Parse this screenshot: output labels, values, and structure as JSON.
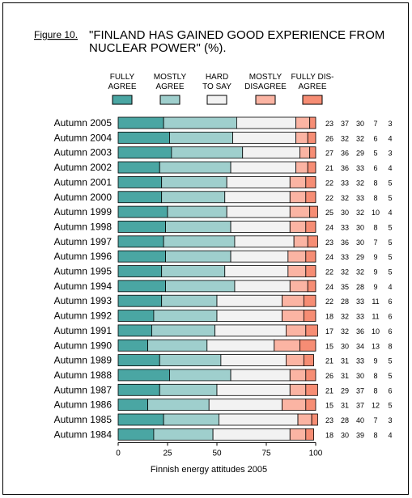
{
  "figure_label": "Figure 10.",
  "chart_data": {
    "type": "bar",
    "stacked": true,
    "orientation": "horizontal",
    "title": "\"FINLAND HAS GAINED GOOD EXPERIENCE FROM NUCLEAR POWER\" (%).",
    "title_lines": [
      "\"FINLAND HAS GAINED GOOD EXPERIENCE FROM",
      "NUCLEAR POWER\" (%)."
    ],
    "xlabel": "Finnish energy attitudes 2005",
    "xlim": [
      0,
      100
    ],
    "xticks": [
      "0",
      "25",
      "50",
      "75",
      "100"
    ],
    "grid": false,
    "legend_position": "top",
    "categories": [
      "Autumn 2005",
      "Autumn 2004",
      "Autumn 2003",
      "Autumn 2002",
      "Autumn 2001",
      "Autumn 2000",
      "Autumn 1999",
      "Autumn 1998",
      "Autumn 1997",
      "Autumn 1996",
      "Autumn 1995",
      "Autumn 1994",
      "Autumn 1993",
      "Autumn 1992",
      "Autumn 1991",
      "Autumn 1990",
      "Autumn 1989",
      "Autumn 1988",
      "Autumn 1987",
      "Autumn 1986",
      "Autumn 1985",
      "Autumn 1984"
    ],
    "series": [
      {
        "name": "FULLY AGREE",
        "legend_lines": [
          "FULLY",
          "AGREE"
        ],
        "color": "#4aa6a3",
        "values": [
          23,
          26,
          27,
          21,
          22,
          22,
          25,
          24,
          23,
          24,
          22,
          24,
          22,
          18,
          17,
          15,
          21,
          26,
          21,
          15,
          23,
          18
        ]
      },
      {
        "name": "MOSTLY AGREE",
        "legend_lines": [
          "MOSTLY",
          "AGREE"
        ],
        "color": "#9fcfcd",
        "values": [
          37,
          32,
          36,
          36,
          33,
          32,
          30,
          33,
          36,
          33,
          32,
          35,
          28,
          32,
          32,
          30,
          31,
          31,
          29,
          31,
          28,
          30
        ]
      },
      {
        "name": "HARD TO SAY",
        "legend_lines": [
          "HARD",
          "TO SAY"
        ],
        "color": "#f2f2f2",
        "values": [
          30,
          32,
          29,
          33,
          32,
          33,
          32,
          30,
          30,
          29,
          32,
          28,
          33,
          33,
          36,
          34,
          33,
          30,
          37,
          37,
          40,
          39
        ]
      },
      {
        "name": "MOSTLY DISAGREE",
        "legend_lines": [
          "MOSTLY",
          "DISAGREE"
        ],
        "color": "#fbb4a3",
        "values": [
          7,
          6,
          5,
          6,
          8,
          8,
          10,
          8,
          7,
          9,
          9,
          9,
          11,
          11,
          10,
          13,
          9,
          8,
          8,
          12,
          7,
          8
        ]
      },
      {
        "name": "FULLY DISAGREE",
        "legend_lines": [
          "FULLY DIS-",
          "AGREE"
        ],
        "color": "#f68d74",
        "values": [
          3,
          4,
          3,
          4,
          5,
          5,
          4,
          5,
          5,
          5,
          5,
          4,
          6,
          6,
          6,
          8,
          5,
          5,
          6,
          5,
          3,
          4
        ]
      }
    ]
  }
}
